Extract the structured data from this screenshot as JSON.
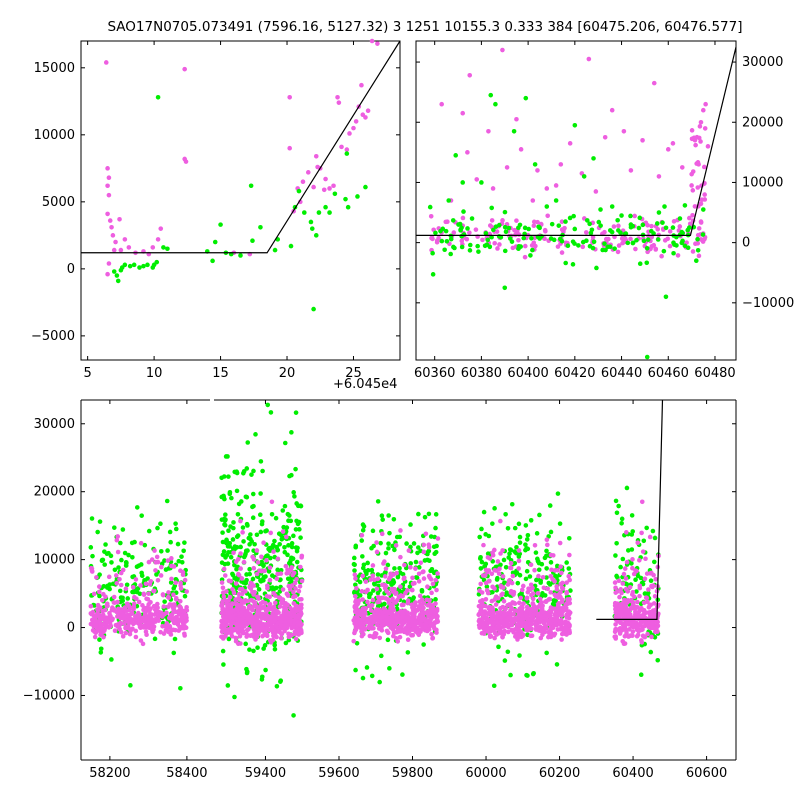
{
  "title": "SAO17N0705.073491 (7596.16, 5127.32)   3 1251 10155.3 0.333 384 [60475.206, 60476.577]",
  "colors": {
    "magenta": "#ee5ee0",
    "green": "#00ee00",
    "line": "#000000"
  },
  "chart_data": [
    {
      "type": "scatter",
      "name": "top-left",
      "xlim": [
        4.5,
        28.5
      ],
      "ylim": [
        -6800,
        17000
      ],
      "xticks": [
        5,
        10,
        15,
        20,
        25
      ],
      "xtick_labels": [
        "5",
        "10",
        "15",
        "20",
        "25"
      ],
      "yticks": [
        -5000,
        0,
        5000,
        10000,
        15000
      ],
      "ytick_labels": [
        "−5000",
        "0",
        "5000",
        "10000",
        "15000"
      ],
      "yaxis_side": "left",
      "model_line": {
        "x": [
          4.5,
          18.5,
          28.5
        ],
        "y": [
          1200,
          1200,
          17000
        ]
      },
      "series": [
        {
          "color": "magenta",
          "points": [
            [
              6.4,
              15400
            ],
            [
              6.5,
              7500
            ],
            [
              6.6,
              6800
            ],
            [
              6.5,
              6200
            ],
            [
              6.6,
              5500
            ],
            [
              6.5,
              4100
            ],
            [
              6.7,
              3600
            ],
            [
              6.8,
              3100
            ],
            [
              6.9,
              2500
            ],
            [
              7.1,
              2000
            ],
            [
              7.0,
              1400
            ],
            [
              6.6,
              400
            ],
            [
              6.5,
              -400
            ],
            [
              7.4,
              3700
            ],
            [
              7.5,
              1400
            ],
            [
              7.8,
              2200
            ],
            [
              8.1,
              1600
            ],
            [
              8.6,
              1200
            ],
            [
              9.2,
              1300
            ],
            [
              9.6,
              1100
            ],
            [
              9.9,
              1600
            ],
            [
              10.3,
              2200
            ],
            [
              10.5,
              3000
            ],
            [
              12.3,
              14900
            ],
            [
              12.4,
              8000
            ],
            [
              12.3,
              8200
            ],
            [
              16.0,
              1200
            ],
            [
              17.2,
              1100
            ],
            [
              20.2,
              12800
            ],
            [
              20.2,
              9000
            ],
            [
              20.5,
              4300
            ],
            [
              20.8,
              6000
            ],
            [
              21.2,
              6500
            ],
            [
              21.6,
              7200
            ],
            [
              22.0,
              6100
            ],
            [
              22.3,
              7600
            ],
            [
              22.5,
              7500
            ],
            [
              22.8,
              5900
            ],
            [
              22.2,
              8400
            ],
            [
              23.2,
              6000
            ],
            [
              23.5,
              6200
            ],
            [
              23.8,
              12800
            ],
            [
              23.9,
              12400
            ],
            [
              24.1,
              9100
            ],
            [
              24.5,
              8900
            ],
            [
              24.7,
              10100
            ],
            [
              25.0,
              10500
            ],
            [
              25.2,
              11000
            ],
            [
              25.4,
              12100
            ],
            [
              25.6,
              13700
            ],
            [
              25.7,
              11500
            ],
            [
              25.9,
              11300
            ],
            [
              26.1,
              11800
            ],
            [
              26.4,
              17000
            ],
            [
              26.8,
              16800
            ],
            [
              21.0,
              5000
            ],
            [
              22.9,
              6700
            ]
          ]
        },
        {
          "color": "green",
          "points": [
            [
              7.0,
              -200
            ],
            [
              7.2,
              -500
            ],
            [
              7.3,
              -900
            ],
            [
              7.5,
              -100
            ],
            [
              7.6,
              100
            ],
            [
              7.8,
              300
            ],
            [
              8.2,
              200
            ],
            [
              8.5,
              300
            ],
            [
              8.9,
              100
            ],
            [
              9.2,
              200
            ],
            [
              9.5,
              300
            ],
            [
              9.9,
              100
            ],
            [
              10.0,
              300
            ],
            [
              10.2,
              500
            ],
            [
              10.3,
              12800
            ],
            [
              10.7,
              1600
            ],
            [
              11.0,
              1500
            ],
            [
              14.0,
              1300
            ],
            [
              14.4,
              600
            ],
            [
              14.6,
              2000
            ],
            [
              15.0,
              3300
            ],
            [
              15.4,
              1200
            ],
            [
              15.8,
              1100
            ],
            [
              16.5,
              1000
            ],
            [
              17.4,
              2100
            ],
            [
              17.3,
              6200
            ],
            [
              18.0,
              3100
            ],
            [
              19.1,
              1400
            ],
            [
              19.3,
              2200
            ],
            [
              20.3,
              1700
            ],
            [
              20.6,
              4600
            ],
            [
              20.9,
              5800
            ],
            [
              21.3,
              4200
            ],
            [
              21.8,
              3500
            ],
            [
              21.9,
              3000
            ],
            [
              22.0,
              -3000
            ],
            [
              22.2,
              2500
            ],
            [
              22.4,
              4200
            ],
            [
              22.9,
              4600
            ],
            [
              23.2,
              4200
            ],
            [
              23.6,
              5600
            ],
            [
              24.4,
              5200
            ],
            [
              24.6,
              4600
            ],
            [
              25.3,
              5400
            ],
            [
              25.9,
              6100
            ],
            [
              24.5,
              8600
            ]
          ]
        }
      ]
    },
    {
      "type": "scatter",
      "name": "top-right",
      "xlim": [
        60352,
        60489
      ],
      "ylim": [
        -19500,
        33500
      ],
      "xticks": [
        60360,
        60380,
        60400,
        60420,
        60440,
        60460,
        60480
      ],
      "xtick_labels": [
        "60360",
        "60380",
        "60400",
        "60420",
        "60440",
        "60460",
        "60480"
      ],
      "yticks": [
        -10000,
        0,
        10000,
        20000,
        30000
      ],
      "ytick_labels": [
        "−10000",
        "0",
        "10000",
        "20000",
        "30000"
      ],
      "yaxis_side": "right",
      "model_line": {
        "x": [
          60352,
          60469.5,
          60489
        ],
        "y": [
          1200,
          1200,
          32500
        ]
      },
      "series": [
        {
          "color": "magenta",
          "points": [
            [
              60363,
              23000
            ],
            [
              60367,
              7000
            ],
            [
              60372,
              21500
            ],
            [
              60374,
              15000
            ],
            [
              60375,
              27800
            ],
            [
              60378,
              10500
            ],
            [
              60383,
              18500
            ],
            [
              60385,
              9000
            ],
            [
              60389,
              32000
            ],
            [
              60391,
              12500
            ],
            [
              60395,
              20500
            ],
            [
              60397,
              15500
            ],
            [
              60402,
              7000
            ],
            [
              60404,
              12000
            ],
            [
              60408,
              9000
            ],
            [
              60412,
              9500
            ],
            [
              60414,
              13000
            ],
            [
              60418,
              16500
            ],
            [
              60423,
              11500
            ],
            [
              60426,
              30500
            ],
            [
              60429,
              8500
            ],
            [
              60433,
              17500
            ],
            [
              60436,
              22000
            ],
            [
              60441,
              18500
            ],
            [
              60444,
              12000
            ],
            [
              60449,
              17000
            ],
            [
              60454,
              26500
            ],
            [
              60456,
              11000
            ],
            [
              60460,
              15500
            ],
            [
              60462,
              16500
            ],
            [
              60466,
              12500
            ],
            [
              60470,
              9500
            ],
            [
              60473,
              13000
            ],
            [
              60474,
              20000
            ],
            [
              60475,
              22000
            ],
            [
              60476,
              23000
            ],
            [
              60477,
              16000
            ]
          ]
        },
        {
          "color": "green",
          "points": [
            [
              60366,
              7000
            ],
            [
              60369,
              14500
            ],
            [
              60372,
              10000
            ],
            [
              60376,
              4000
            ],
            [
              60380,
              10000
            ],
            [
              60384,
              24500
            ],
            [
              60386,
              23000
            ],
            [
              60390,
              -7500
            ],
            [
              60394,
              18500
            ],
            [
              60399,
              24000
            ],
            [
              60403,
              13000
            ],
            [
              60408,
              6000
            ],
            [
              60412,
              7000
            ],
            [
              60416,
              3500
            ],
            [
              60420,
              19500
            ],
            [
              60424,
              11000
            ],
            [
              60428,
              14000
            ],
            [
              60431,
              5500
            ],
            [
              60436,
              6000
            ],
            [
              60440,
              4500
            ],
            [
              60444,
              3000
            ],
            [
              60448,
              -3500
            ],
            [
              60451,
              -19000
            ],
            [
              60456,
              5000
            ],
            [
              60459,
              -9000
            ],
            [
              60462,
              2500
            ],
            [
              60465,
              4000
            ],
            [
              60469,
              2500
            ],
            [
              60472,
              -3000
            ],
            [
              60475,
              5500
            ]
          ]
        }
      ],
      "clusters": [
        {
          "x0": 60358,
          "x1": 60476,
          "count_m": 190,
          "count_g": 150
        }
      ]
    },
    {
      "type": "scatter",
      "name": "bottom",
      "x_offset_label": "+6.045e4",
      "xlim": [
        58125,
        58460
      ],
      "xlim_right": [
        59260,
        60680
      ],
      "ylim": [
        -19500,
        33500
      ],
      "xticks": [
        58200,
        58400,
        59400,
        59600,
        59800,
        60000,
        60200,
        60400,
        60600
      ],
      "xtick_labels": [
        "58200",
        "58400",
        "59400",
        "59600",
        "59800",
        "60000",
        "60200",
        "60400",
        "60600"
      ],
      "yticks": [
        -10000,
        0,
        10000,
        20000,
        30000
      ],
      "ytick_labels": [
        "−10000",
        "0",
        "10000",
        "20000",
        "30000"
      ],
      "yaxis_side": "left",
      "model_line": {
        "x": [
          60300,
          60465,
          60480
        ],
        "y": [
          1200,
          1200,
          33500
        ]
      },
      "clusters": [
        {
          "x0": 58150,
          "x1": 58400,
          "count_m": 420,
          "count_g": 200
        },
        {
          "x0": 59280,
          "x1": 59500,
          "count_m": 650,
          "count_g": 420
        },
        {
          "x0": 59640,
          "x1": 59870,
          "count_m": 520,
          "count_g": 260
        },
        {
          "x0": 59980,
          "x1": 60230,
          "count_m": 620,
          "count_g": 240
        },
        {
          "x0": 60350,
          "x1": 60470,
          "count_m": 300,
          "count_g": 90
        }
      ]
    }
  ]
}
